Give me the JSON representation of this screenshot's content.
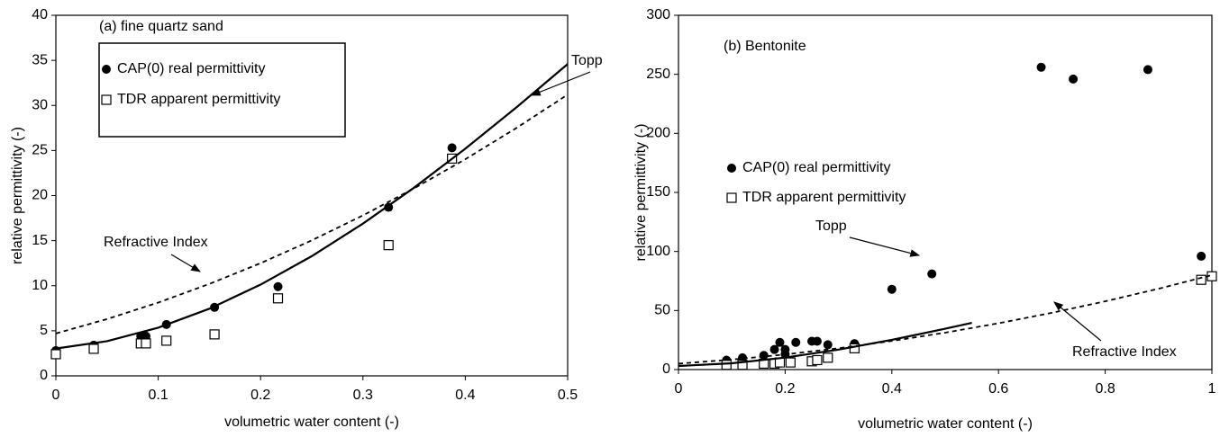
{
  "chart_data": [
    {
      "type": "scatter-line",
      "title": "(a) fine quartz sand",
      "x_label": "volumetric water content (-)",
      "y_label": "relative permittivity (-)",
      "xlim": [
        0,
        0.5
      ],
      "xticks": [
        0,
        0.1,
        0.2,
        0.3,
        0.4,
        0.5
      ],
      "ylim": [
        0,
        40
      ],
      "yticks": [
        0,
        5,
        10,
        15,
        20,
        25,
        30,
        35,
        40
      ],
      "grid": false,
      "legend": "upper left",
      "series": [
        {
          "name": "CAP(0) real permittivity",
          "marker": "circle",
          "color": "#000000",
          "x": [
            0,
            0.037,
            0.037,
            0.083,
            0.088,
            0.108,
            0.155,
            0.217,
            0.325,
            0.387
          ],
          "values": [
            2.8,
            3.4,
            3.0,
            4.4,
            4.4,
            5.7,
            7.6,
            9.9,
            18.7,
            25.3
          ]
        },
        {
          "name": "TDR apparent permittivity",
          "marker": "square",
          "color": "#000000",
          "x": [
            0,
            0.037,
            0.083,
            0.088,
            0.108,
            0.155,
            0.217,
            0.325,
            0.387
          ],
          "values": [
            2.4,
            3.0,
            3.6,
            3.6,
            3.9,
            4.6,
            8.6,
            14.5,
            24.1
          ]
        },
        {
          "name": "Topp",
          "line": "solid",
          "color": "#000000",
          "x": [
            0,
            0.05,
            0.1,
            0.15,
            0.2,
            0.25,
            0.3,
            0.35,
            0.4,
            0.45,
            0.5
          ],
          "values": [
            3.03,
            3.85,
            5.34,
            7.45,
            10.12,
            13.28,
            16.89,
            20.88,
            25.2,
            29.79,
            34.59
          ]
        },
        {
          "name": "Refractive Index",
          "line": "dashed",
          "color": "#000000",
          "x": [
            0,
            0.05,
            0.1,
            0.15,
            0.2,
            0.25,
            0.3,
            0.35,
            0.4,
            0.45,
            0.5
          ],
          "values": [
            4.7,
            6.3,
            8.13,
            10.2,
            12.5,
            15.03,
            17.8,
            20.8,
            24.03,
            27.5,
            31.2
          ]
        }
      ]
    },
    {
      "type": "scatter-line",
      "title": "(b) Bentonite",
      "x_label": "volumetric water content (-)",
      "y_label": "relative permittivity (-)",
      "xlim": [
        0,
        1
      ],
      "xticks": [
        0,
        0.2,
        0.4,
        0.6,
        0.8,
        1
      ],
      "ylim": [
        0,
        300
      ],
      "yticks": [
        0,
        50,
        100,
        150,
        200,
        250,
        300
      ],
      "grid": false,
      "legend": "upper left",
      "series": [
        {
          "name": "CAP(0) real permittivity",
          "marker": "circle",
          "color": "#000000",
          "x": [
            0.09,
            0.12,
            0.16,
            0.18,
            0.19,
            0.2,
            0.2,
            0.22,
            0.25,
            0.26,
            0.28,
            0.33,
            0.4,
            0.475,
            0.68,
            0.74,
            0.88,
            0.98,
            1.0
          ],
          "values": [
            8,
            10,
            12,
            17,
            23,
            17,
            13,
            23,
            24,
            24,
            21,
            22,
            68,
            81,
            256,
            246,
            254,
            96,
            79
          ]
        },
        {
          "name": "TDR apparent permittivity",
          "marker": "square",
          "color": "#000000",
          "x": [
            0.09,
            0.12,
            0.16,
            0.18,
            0.19,
            0.21,
            0.25,
            0.26,
            0.28,
            0.33,
            0.98,
            1.0
          ],
          "values": [
            4,
            4,
            5,
            5,
            6,
            6,
            7,
            8,
            10,
            18,
            76,
            79
          ]
        },
        {
          "name": "Topp",
          "line": "solid",
          "color": "#000000",
          "x": [
            0,
            0.1,
            0.2,
            0.3,
            0.4,
            0.5,
            0.55
          ],
          "values": [
            3.03,
            5.34,
            10.12,
            16.89,
            25.2,
            34.59,
            39.55
          ]
        },
        {
          "name": "Refractive Index",
          "line": "dashed",
          "color": "#000000",
          "x": [
            0,
            0.1,
            0.2,
            0.3,
            0.4,
            0.5,
            0.6,
            0.7,
            0.8,
            0.9,
            1.0
          ],
          "values": [
            5.0,
            8.45,
            12.8,
            18.05,
            24.2,
            31.25,
            39.2,
            48.05,
            57.8,
            68.46,
            80.0
          ]
        }
      ]
    }
  ]
}
